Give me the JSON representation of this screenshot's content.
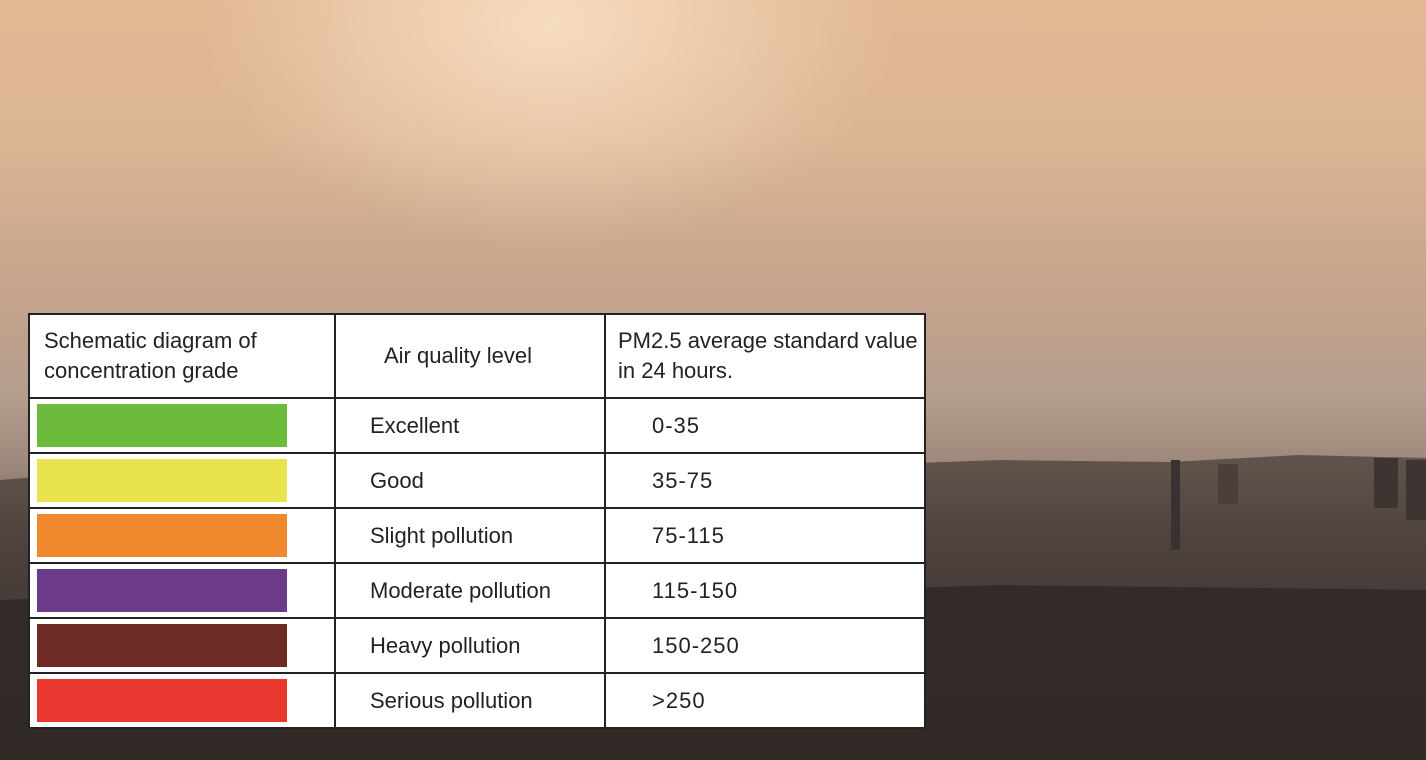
{
  "table": {
    "header": [
      "Schematic diagram of concentration grade",
      "Air quality level",
      "PM2.5 average standard value in 24 hours."
    ],
    "rows": [
      {
        "color": "#6cbb3c",
        "level": "Excellent",
        "range": "0-35"
      },
      {
        "color": "#e8e34f",
        "level": "Good",
        "range": "35-75"
      },
      {
        "color": "#f0892e",
        "level": "Slight pollution",
        "range": "75-115"
      },
      {
        "color": "#6e3a8a",
        "level": "Moderate pollution",
        "range": "115-150"
      },
      {
        "color": "#6e2a24",
        "level": "Heavy pollution",
        "range": "150-250"
      },
      {
        "color": "#e8382f",
        "level": "Serious pollution",
        "range": ">250"
      }
    ]
  }
}
